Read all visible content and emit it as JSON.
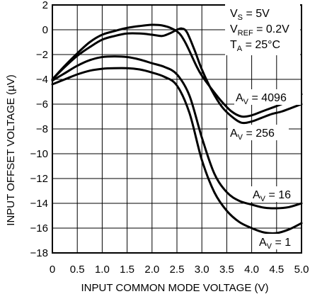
{
  "chart_data": {
    "type": "line",
    "xlabel": "INPUT COMMON MODE VOLTAGE (V)",
    "ylabel": "INPUT OFFSET VOLTAGE (µV)",
    "xlim": [
      0,
      5
    ],
    "ylim": [
      -18,
      2
    ],
    "xticks": [
      0,
      0.5,
      1.0,
      1.5,
      2.0,
      2.5,
      3.0,
      3.5,
      4.0,
      4.5,
      5.0
    ],
    "xtick_labels": [
      "0",
      "0.5",
      "1.0",
      "1.5",
      "2.0",
      "2.5",
      "3.0",
      "3.5",
      "4.0",
      "4.5",
      "5.0"
    ],
    "yticks": [
      2,
      0,
      -2,
      -4,
      -6,
      -8,
      -10,
      -12,
      -14,
      -16,
      -18
    ],
    "ytick_labels": [
      "2",
      "0",
      "−2",
      "−4",
      "−6",
      "−8",
      "−10",
      "−12",
      "−14",
      "−16",
      "−18"
    ],
    "grid": true,
    "conditions": [
      {
        "main": "V",
        "sub": "S",
        "rest": " = 5V"
      },
      {
        "main": "V",
        "sub": "REF",
        "rest": " = 0.2V"
      },
      {
        "main": "T",
        "sub": "A",
        "rest": " = 25°C"
      }
    ],
    "series": [
      {
        "label_main": "A",
        "label_sub": "V",
        "label_rest": " = 4096",
        "x": [
          0,
          0.25,
          0.5,
          0.75,
          1.0,
          1.25,
          1.5,
          1.75,
          2.0,
          2.2,
          2.4,
          2.55,
          2.65,
          2.75,
          2.9,
          3.0,
          3.2,
          3.4,
          3.6,
          3.8,
          4.0,
          4.2,
          4.4,
          4.6,
          4.8,
          5.0
        ],
        "y": [
          -4.0,
          -2.9,
          -1.9,
          -1.0,
          -0.4,
          -0.1,
          0.15,
          0.3,
          0.4,
          0.35,
          0.1,
          -0.3,
          -0.9,
          -1.7,
          -3.0,
          -3.7,
          -4.8,
          -5.8,
          -6.6,
          -7.0,
          -6.9,
          -6.6,
          -6.3,
          -6.0,
          -5.6,
          -5.2
        ]
      },
      {
        "label_main": "A",
        "label_sub": "V",
        "label_rest": " = 256",
        "x": [
          0,
          0.25,
          0.5,
          0.75,
          1.0,
          1.25,
          1.5,
          1.75,
          2.0,
          2.2,
          2.35,
          2.5,
          2.6,
          2.7,
          2.85,
          3.0,
          3.2,
          3.4,
          3.6,
          3.8,
          4.0,
          4.2,
          4.4,
          4.6,
          4.8,
          5.0
        ],
        "y": [
          -4.0,
          -3.0,
          -2.1,
          -1.4,
          -0.8,
          -0.5,
          -0.3,
          -0.3,
          -0.4,
          -0.5,
          -0.3,
          0.0,
          0.1,
          -0.2,
          -1.6,
          -3.2,
          -4.9,
          -6.2,
          -7.0,
          -7.5,
          -7.4,
          -7.1,
          -6.8,
          -6.6,
          -6.3,
          -6.0
        ]
      },
      {
        "label_main": "A",
        "label_sub": "V",
        "label_rest": " = 16",
        "x": [
          0,
          0.25,
          0.5,
          0.75,
          1.0,
          1.25,
          1.5,
          1.75,
          2.0,
          2.25,
          2.5,
          2.75,
          3.0,
          3.25,
          3.5,
          3.75,
          4.0,
          4.25,
          4.5,
          4.75,
          5.0
        ],
        "y": [
          -4.1,
          -3.5,
          -2.9,
          -2.45,
          -2.2,
          -2.15,
          -2.2,
          -2.4,
          -2.7,
          -3.0,
          -3.6,
          -5.3,
          -8.7,
          -11.6,
          -13.1,
          -13.8,
          -14.1,
          -14.35,
          -14.4,
          -14.3,
          -14.0
        ]
      },
      {
        "label_main": "A",
        "label_sub": "V",
        "label_rest": " = 1",
        "x": [
          0,
          0.25,
          0.5,
          0.75,
          1.0,
          1.25,
          1.5,
          1.75,
          2.0,
          2.25,
          2.5,
          2.75,
          3.0,
          3.25,
          3.5,
          3.75,
          4.0,
          4.25,
          4.5,
          4.75,
          5.0
        ],
        "y": [
          -4.4,
          -4.0,
          -3.6,
          -3.3,
          -3.15,
          -3.1,
          -3.1,
          -3.2,
          -3.45,
          -3.8,
          -4.5,
          -6.7,
          -10.5,
          -13.1,
          -14.6,
          -15.5,
          -16.0,
          -16.35,
          -16.4,
          -16.1,
          -15.6
        ]
      }
    ]
  }
}
